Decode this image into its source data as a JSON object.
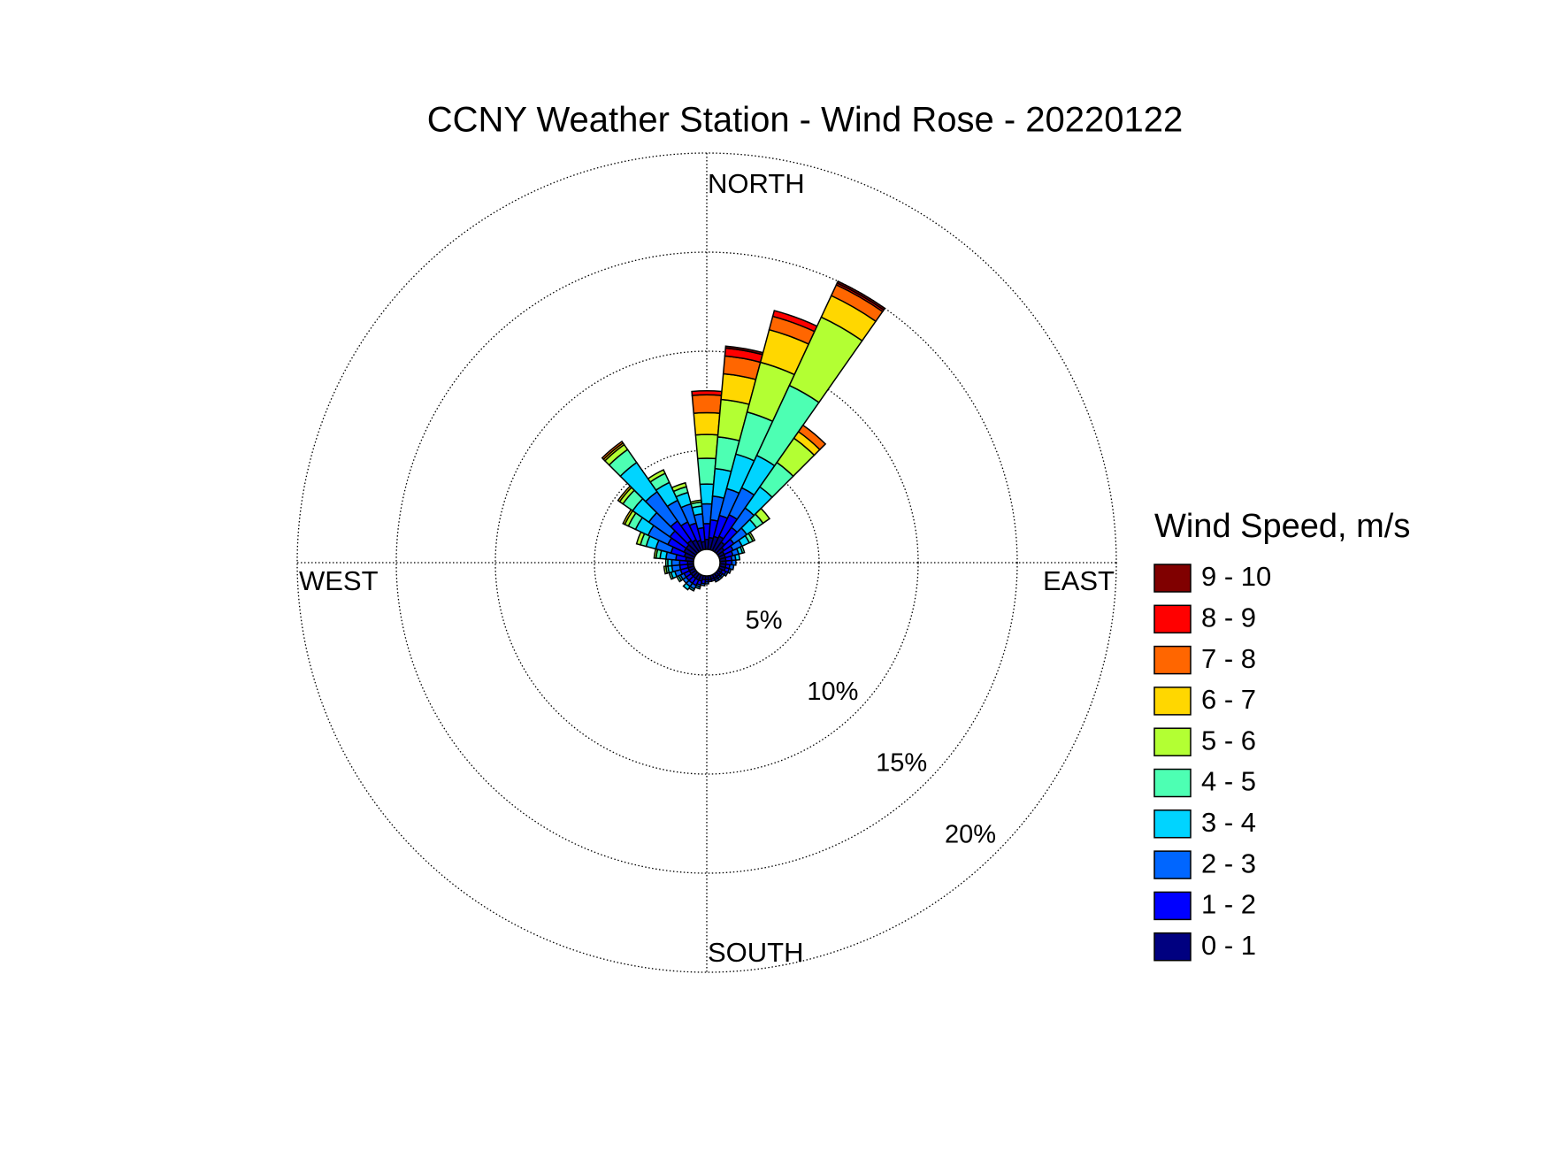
{
  "chart_data": {
    "type": "windrose",
    "title": "CCNY Weather Station - Wind Rose - 20220122",
    "compass": {
      "north": "NORTH",
      "east": "EAST",
      "south": "SOUTH",
      "west": "WEST"
    },
    "legend_title": "Wind Speed, m/s",
    "x": [
      0,
      10,
      20,
      30,
      40,
      50,
      60,
      70,
      80,
      90,
      100,
      110,
      120,
      130,
      140,
      150,
      160,
      170,
      180,
      190,
      200,
      210,
      220,
      230,
      240,
      250,
      260,
      270,
      280,
      290,
      300,
      310,
      320,
      330,
      340,
      350
    ],
    "ylim": [
      0,
      20
    ],
    "yticks": [
      {
        "value": 5,
        "label": "5%"
      },
      {
        "value": 10,
        "label": "10%"
      },
      {
        "value": 15,
        "label": "15%"
      },
      {
        "value": 20,
        "label": "20%"
      }
    ],
    "grid": true,
    "series": [
      {
        "name": "0 - 1",
        "color": "#000080",
        "values": [
          0.5,
          0.6,
          0.7,
          0.8,
          0.6,
          0.4,
          0.3,
          0.3,
          0.3,
          0.3,
          0.3,
          0.3,
          0.2,
          0.2,
          0.2,
          0.2,
          0.2,
          0.2,
          0.2,
          0.2,
          0.3,
          0.3,
          0.3,
          0.3,
          0.3,
          0.3,
          0.3,
          0.3,
          0.4,
          0.5,
          0.6,
          0.6,
          0.7,
          0.6,
          0.5,
          0.4
        ]
      },
      {
        "name": "1 - 2",
        "color": "#0000ff",
        "values": [
          0.8,
          0.9,
          1.1,
          1.2,
          0.9,
          0.6,
          0.5,
          0.4,
          0.3,
          0.3,
          0.2,
          0.2,
          0.2,
          0.1,
          0.1,
          0.1,
          0.1,
          0.1,
          0.1,
          0.2,
          0.2,
          0.3,
          0.3,
          0.3,
          0.3,
          0.4,
          0.4,
          0.4,
          0.5,
          0.7,
          0.9,
          1.0,
          1.2,
          1.0,
          0.9,
          0.7
        ]
      },
      {
        "name": "2 - 3",
        "color": "#0066ff",
        "values": [
          1.0,
          1.2,
          1.4,
          1.5,
          1.2,
          0.8,
          0.5,
          0.3,
          0.2,
          0.2,
          0.2,
          0.1,
          0.1,
          0.1,
          0.1,
          0.1,
          0,
          0,
          0.1,
          0.1,
          0.1,
          0.2,
          0.2,
          0.2,
          0.2,
          0.3,
          0.4,
          0.4,
          0.5,
          0.8,
          1.1,
          1.3,
          1.8,
          1.2,
          1.0,
          0.7
        ]
      },
      {
        "name": "3 - 4",
        "color": "#00d4ff",
        "values": [
          1.0,
          1.4,
          1.8,
          1.8,
          1.3,
          0.6,
          0.4,
          0.2,
          0.2,
          0,
          0,
          0,
          0,
          0,
          0,
          0,
          0,
          0,
          0,
          0,
          0.1,
          0.1,
          0.2,
          0,
          0.1,
          0.2,
          0.2,
          0.2,
          0.3,
          0.5,
          0.7,
          1.0,
          1.8,
          1.0,
          0.6,
          0.4
        ]
      },
      {
        "name": "4 - 5",
        "color": "#4dffb3",
        "values": [
          1.3,
          1.6,
          2.2,
          3.9,
          1.5,
          0.4,
          0.2,
          0.1,
          0,
          0,
          0,
          0,
          0,
          0,
          0,
          0,
          0,
          0,
          0,
          0,
          0,
          0,
          0,
          0,
          0.1,
          0.1,
          0.1,
          0.1,
          0.2,
          0.3,
          0.4,
          0.6,
          0.8,
          0.5,
          0.3,
          0.2
        ]
      },
      {
        "name": "5 - 6",
        "color": "#b3ff33",
        "values": [
          1.2,
          1.9,
          2.6,
          3.8,
          1.5,
          0.4,
          0.1,
          0,
          0,
          0,
          0,
          0,
          0,
          0,
          0,
          0,
          0,
          0,
          0,
          0,
          0,
          0,
          0,
          0,
          0,
          0,
          0.1,
          0,
          0.1,
          0.2,
          0.2,
          0.2,
          0.3,
          0.2,
          0.2,
          0.1
        ]
      },
      {
        "name": "6 - 7",
        "color": "#ffd700",
        "values": [
          1.1,
          1.3,
          1.7,
          1.2,
          0.4,
          0,
          0,
          0,
          0,
          0,
          0,
          0,
          0,
          0,
          0,
          0,
          0,
          0,
          0,
          0,
          0,
          0,
          0,
          0,
          0,
          0,
          0,
          0,
          0,
          0,
          0.1,
          0.1,
          0.1,
          0,
          0,
          0
        ]
      },
      {
        "name": "7 - 8",
        "color": "#ff6600",
        "values": [
          0.9,
          0.9,
          0.7,
          0.6,
          0.4,
          0,
          0,
          0,
          0,
          0,
          0,
          0,
          0,
          0,
          0,
          0,
          0,
          0,
          0,
          0,
          0,
          0,
          0,
          0,
          0,
          0,
          0,
          0,
          0,
          0,
          0,
          0,
          0.1,
          0,
          0,
          0
        ]
      },
      {
        "name": "8 - 9",
        "color": "#ff0000",
        "values": [
          0.2,
          0.4,
          0.3,
          0.1,
          0,
          0,
          0,
          0,
          0,
          0,
          0,
          0,
          0,
          0,
          0,
          0,
          0,
          0,
          0,
          0,
          0,
          0,
          0,
          0,
          0,
          0,
          0,
          0,
          0,
          0,
          0,
          0,
          0,
          0,
          0,
          0
        ]
      },
      {
        "name": "9 - 10",
        "color": "#800000",
        "values": [
          0,
          0.1,
          0,
          0.1,
          0,
          0,
          0,
          0,
          0,
          0,
          0,
          0,
          0,
          0,
          0,
          0,
          0,
          0,
          0,
          0,
          0,
          0,
          0,
          0,
          0,
          0,
          0,
          0,
          0,
          0,
          0,
          0,
          0,
          0,
          0,
          0
        ]
      }
    ]
  }
}
